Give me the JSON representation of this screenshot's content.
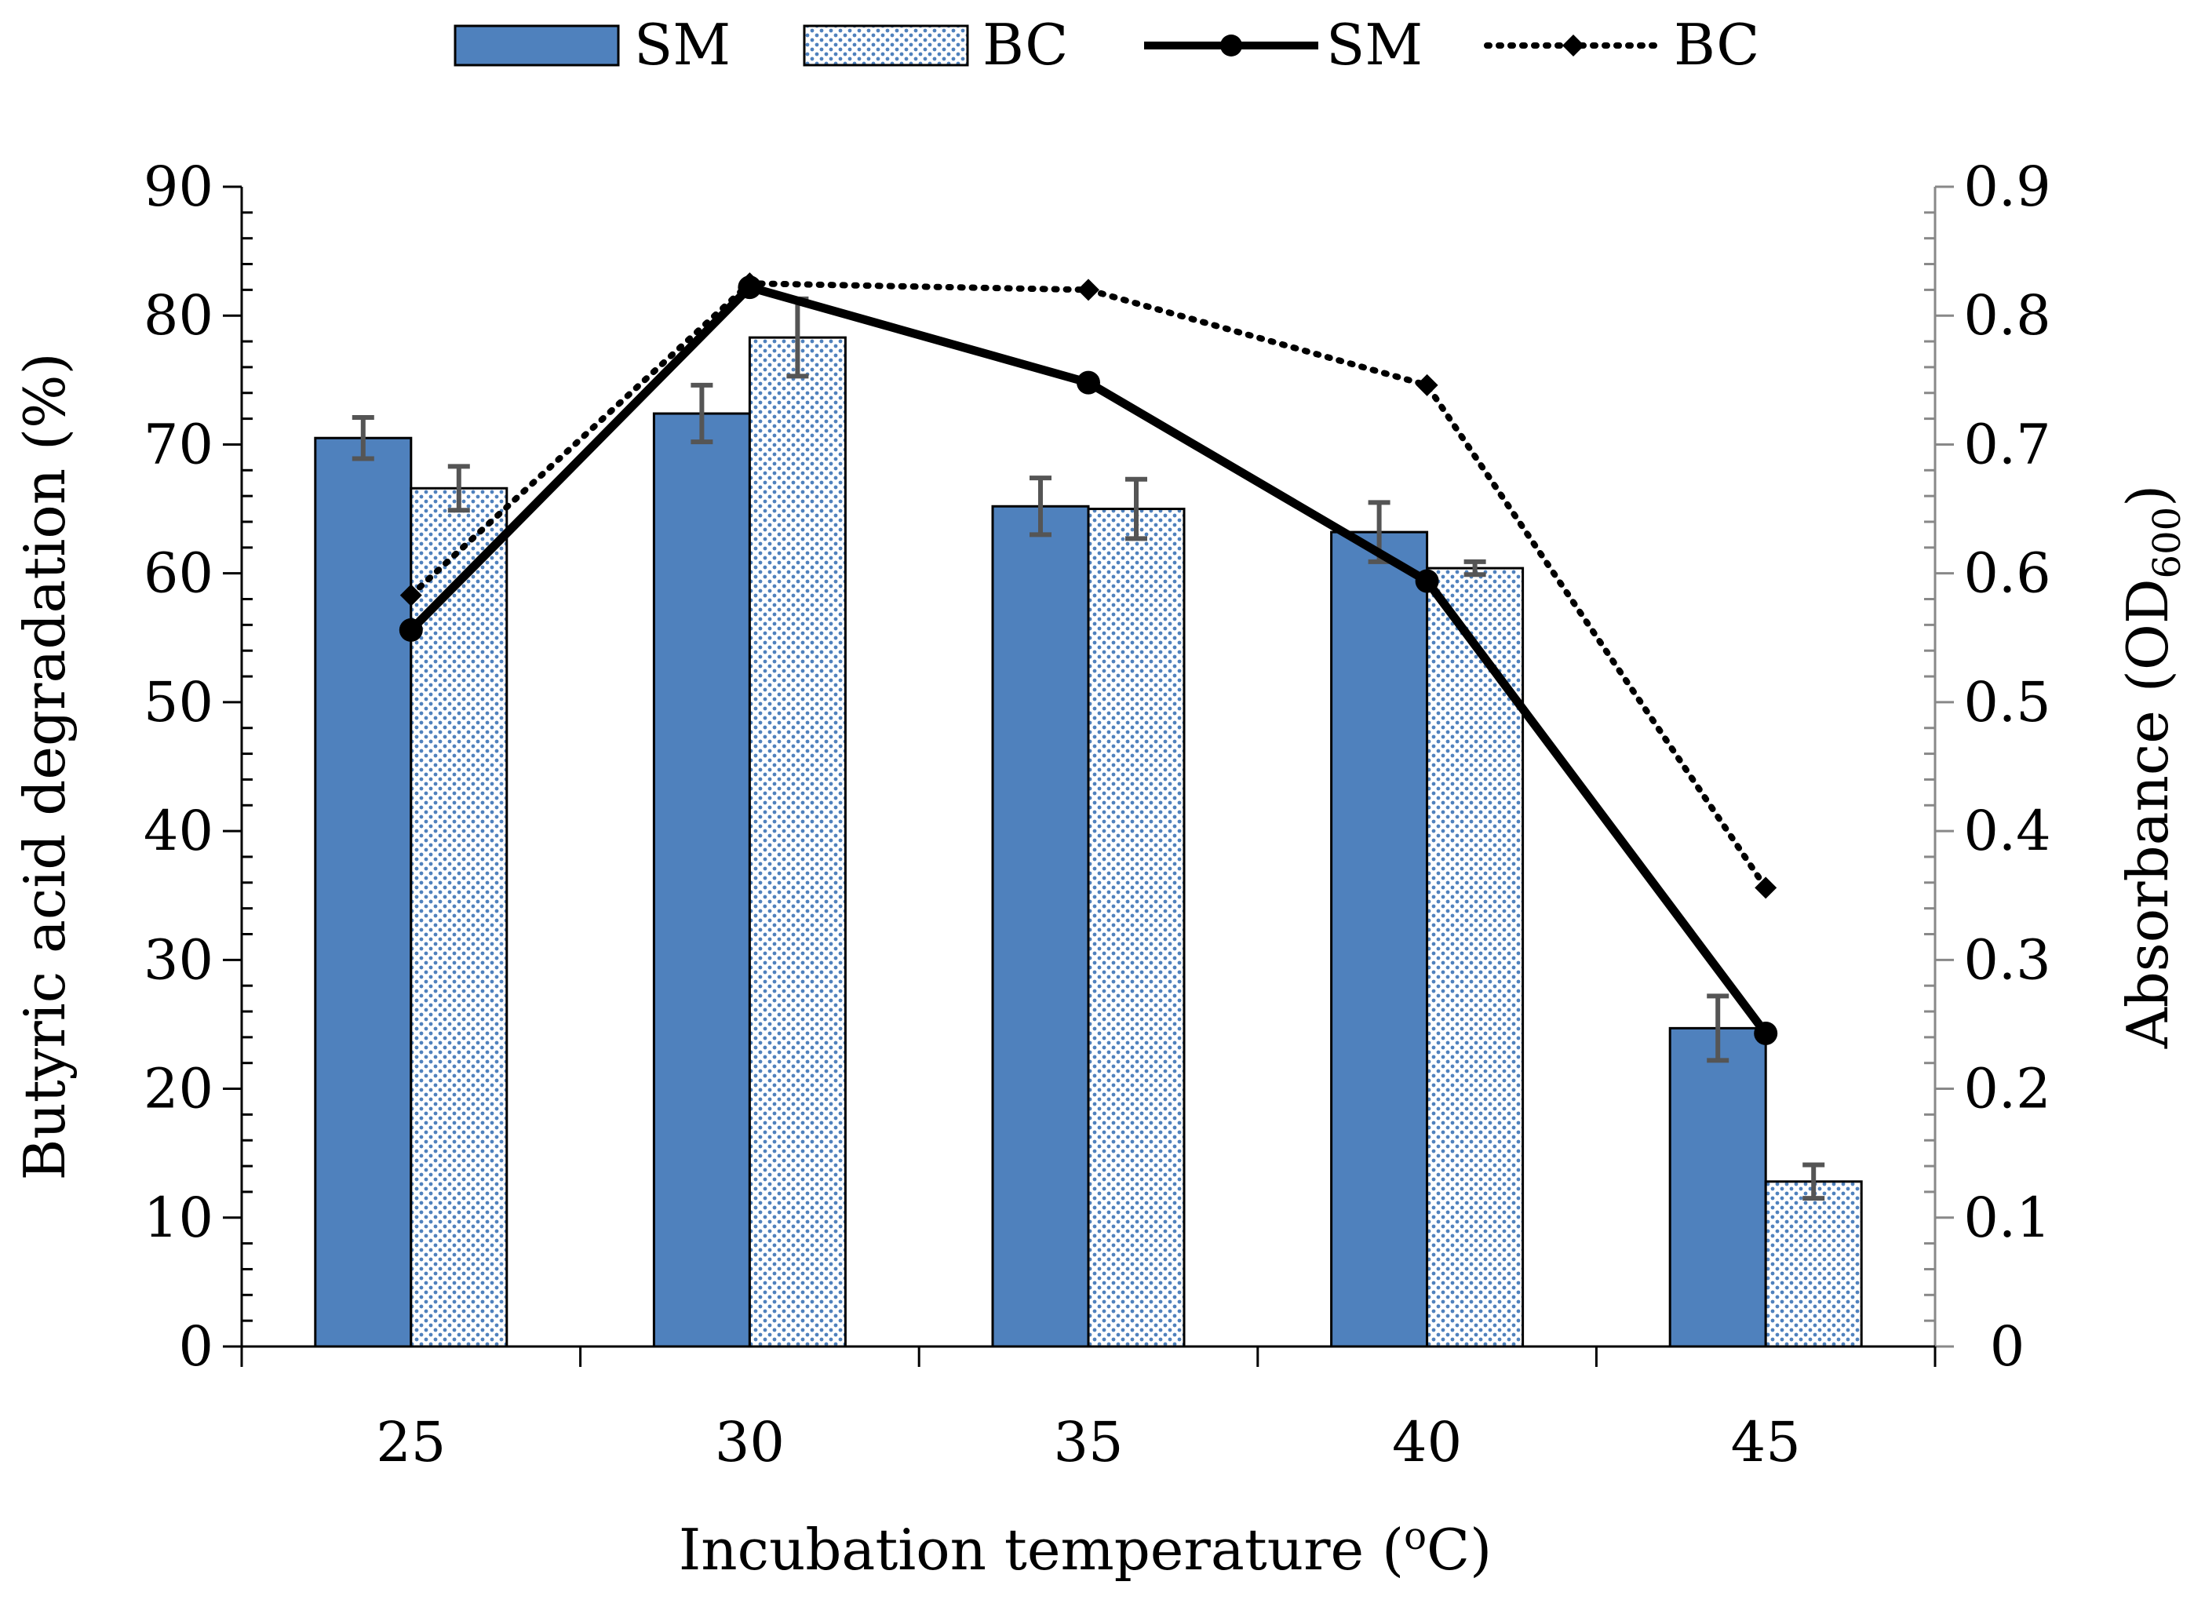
{
  "chart_data": {
    "type": "bar+line",
    "categories": [
      "25",
      "30",
      "35",
      "40",
      "45"
    ],
    "xlabel": {
      "main": "Incubation temperature (",
      "sup": "o",
      "tail": "C)"
    },
    "ylabel_left": "Butyric acid degradation (%)",
    "ylabel_right": {
      "main": "Absorbance (OD",
      "sub": "600",
      "tail": ")"
    },
    "ylim_left": [
      0,
      90
    ],
    "ylim_right": [
      0,
      0.9
    ],
    "yticks_left": [
      "0",
      "10",
      "20",
      "30",
      "40",
      "50",
      "60",
      "70",
      "80",
      "90"
    ],
    "yticks_right": [
      "0",
      "0.1",
      "0.2",
      "0.3",
      "0.4",
      "0.5",
      "0.6",
      "0.7",
      "0.8",
      "0.9"
    ],
    "bar_series": [
      {
        "name": "SM",
        "axis": "left",
        "values": [
          70.5,
          72.4,
          65.2,
          63.2,
          24.7
        ],
        "errors": [
          1.6,
          2.2,
          2.2,
          2.3,
          2.5
        ],
        "color": "#4f81bd",
        "pattern": "solid"
      },
      {
        "name": "BC",
        "axis": "left",
        "values": [
          66.6,
          78.3,
          65.0,
          60.4,
          12.8
        ],
        "errors": [
          1.7,
          3.0,
          2.3,
          0.5,
          1.3
        ],
        "color": "#4f81bd",
        "pattern": "dotted"
      }
    ],
    "line_series": [
      {
        "name": "SM",
        "axis": "right",
        "values": [
          0.556,
          0.822,
          0.748,
          0.594,
          0.243
        ],
        "style": "solid",
        "marker": "circle",
        "color": "#000000"
      },
      {
        "name": "BC",
        "axis": "right",
        "values": [
          0.583,
          0.825,
          0.82,
          0.746,
          0.356
        ],
        "style": "dotted",
        "marker": "diamond",
        "color": "#000000"
      }
    ],
    "legend": {
      "position": "top",
      "entries": [
        "SM",
        "BC",
        "SM",
        "BC"
      ]
    },
    "grid": false
  }
}
